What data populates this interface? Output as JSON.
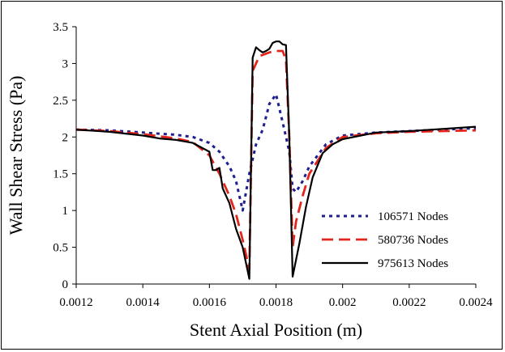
{
  "chart_data": {
    "type": "line",
    "title": "",
    "xlabel": "Stent Axial Position (m)",
    "ylabel": "Wall Shear Stress (Pa)",
    "xlim": [
      0.0012,
      0.0024
    ],
    "ylim": [
      0,
      3.5
    ],
    "x_ticks": [
      "0.0012",
      "0.0014",
      "0.0016",
      "0.0018",
      "0.002",
      "0.0022",
      "0.0024"
    ],
    "y_ticks": [
      "0",
      "0.5",
      "1",
      "1.5",
      "2",
      "2.5",
      "3",
      "3.5"
    ],
    "grid": false,
    "legend_position": "lower-right",
    "series": [
      {
        "name": "106571 Nodes",
        "color": "#1f1f8f",
        "dash": "dotted",
        "x": [
          0.0012,
          0.0013,
          0.0014,
          0.0015,
          0.00155,
          0.0016,
          0.00163,
          0.00166,
          0.00168,
          0.0017,
          0.00172,
          0.00174,
          0.00176,
          0.00178,
          0.0018,
          0.00182,
          0.00184,
          0.00185,
          0.00186,
          0.00188,
          0.0019,
          0.00195,
          0.002,
          0.0021,
          0.0022,
          0.0023,
          0.0024
        ],
        "y": [
          2.1,
          2.09,
          2.06,
          2.03,
          2.0,
          1.92,
          1.8,
          1.6,
          1.4,
          1.0,
          1.5,
          1.9,
          2.1,
          2.45,
          2.58,
          2.2,
          1.8,
          1.3,
          1.25,
          1.4,
          1.6,
          1.9,
          2.02,
          2.06,
          2.08,
          2.1,
          2.12
        ]
      },
      {
        "name": "580736 Nodes",
        "color": "#e3261c",
        "dash": "dashed",
        "x": [
          0.0012,
          0.0013,
          0.0014,
          0.0015,
          0.00155,
          0.0016,
          0.00163,
          0.00166,
          0.00168,
          0.0017,
          0.00171,
          0.00172,
          0.00173,
          0.00175,
          0.00178,
          0.0018,
          0.00182,
          0.00183,
          0.00184,
          0.00185,
          0.00186,
          0.00188,
          0.0019,
          0.00195,
          0.002,
          0.0021,
          0.0022,
          0.0023,
          0.0024
        ],
        "y": [
          2.1,
          2.08,
          2.04,
          1.98,
          1.93,
          1.75,
          1.5,
          1.2,
          0.95,
          0.6,
          0.4,
          0.2,
          2.9,
          3.1,
          3.15,
          3.17,
          3.17,
          3.05,
          2.0,
          0.5,
          0.85,
          1.2,
          1.5,
          1.85,
          2.0,
          2.05,
          2.07,
          2.08,
          2.09
        ]
      },
      {
        "name": "975613 Nodes",
        "color": "#000000",
        "dash": "solid",
        "x": [
          0.0012,
          0.0013,
          0.0014,
          0.00145,
          0.0015,
          0.00155,
          0.0016,
          0.00161,
          0.00162,
          0.00163,
          0.00164,
          0.00166,
          0.00168,
          0.0017,
          0.00172,
          0.00173,
          0.00174,
          0.00175,
          0.00176,
          0.00177,
          0.00178,
          0.00179,
          0.0018,
          0.00181,
          0.00182,
          0.00183,
          0.00184,
          0.00185,
          0.00187,
          0.00189,
          0.00191,
          0.00194,
          0.00197,
          0.002,
          0.0021,
          0.0022,
          0.0023,
          0.0024
        ],
        "y": [
          2.1,
          2.07,
          2.02,
          1.98,
          1.96,
          1.92,
          1.8,
          1.55,
          1.55,
          1.58,
          1.3,
          1.1,
          0.75,
          0.5,
          0.07,
          3.08,
          3.22,
          3.18,
          3.15,
          3.17,
          3.2,
          3.28,
          3.3,
          3.3,
          3.26,
          3.25,
          2.0,
          0.1,
          0.55,
          1.05,
          1.45,
          1.78,
          1.9,
          1.97,
          2.06,
          2.08,
          2.11,
          2.14
        ]
      }
    ]
  }
}
